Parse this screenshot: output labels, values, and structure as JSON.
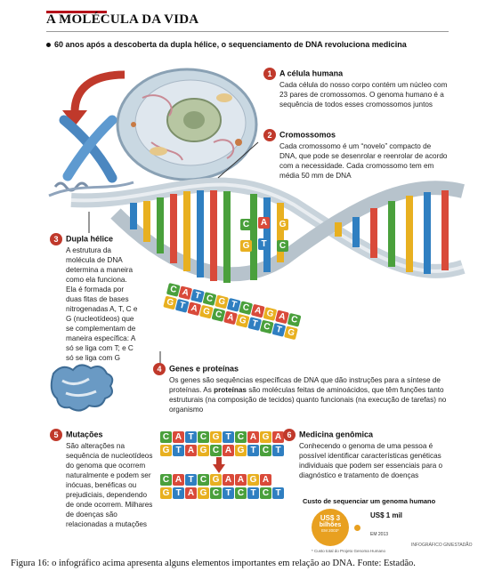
{
  "header": {
    "title": "A MOLÉCULA DA VIDA",
    "subtitle": "60 anos após a descoberta da dupla hélice, o sequenciamento de DNA revoluciona medicina"
  },
  "sections": [
    {
      "num": "1",
      "title": "A célula humana",
      "text": "Cada célula do nosso corpo contém um núcleo com 23 pares de cromossomos. O genoma humano é a sequência de todos esses cromossomos juntos"
    },
    {
      "num": "2",
      "title": "Cromossomos",
      "text": "Cada cromossomo é um “novelo” compacto de DNA, que pode se desenrolar e reenrolar de acordo com a necessidade. Cada cromossomo tem em média 50 mm de DNA"
    },
    {
      "num": "3",
      "title": "Dupla hélice",
      "text": "A estrutura da molécula de DNA determina a maneira como ela funciona. Ela é formada por duas fitas de bases nitrogenadas A, T, C e G (nucleotídeos) que se complementam de maneira específica: A só se liga com T; e C só se liga com G"
    },
    {
      "num": "4",
      "title": "Genes e proteínas",
      "text_a": "Os genes são sequências específicas de DNA que dão instruções para a síntese de proteínas. As ",
      "text_bold": "proteínas",
      "text_b": " são moléculas feitas de aminoácidos, que têm funções tanto estruturais (na composição de tecidos) quanto funcionais (na execução de tarefas) no organismo"
    },
    {
      "num": "5",
      "title": "Mutações",
      "text": "São alterações na sequência de nucleotídeos do genoma que ocorrem naturalmente e podem ser inócuas, benéficas ou prejudiciais, dependendo de onde ocorrem. Milhares de doenças são relacionadas a mutações"
    },
    {
      "num": "6",
      "title": "Medicina genômica",
      "text": "Conhecendo o genoma de uma pessoa é possível identificar características genéticas individuais que podem ser essenciais para o diagnóstico e tratamento de doenças"
    }
  ],
  "helix_bases": {
    "top": [
      "C",
      "A",
      "G"
    ],
    "bottom": [
      "G",
      "T",
      "C"
    ]
  },
  "strand": {
    "top": "CATCGTCAGAC",
    "bottom": "GTAGCAGTCTG"
  },
  "mutation": {
    "row1": "CATCGTCAGA",
    "row2": "GTAGCAGTCT",
    "row3": "CATCGAAGA",
    "row4": "GTAGCTCTCT"
  },
  "cost": {
    "title": "Custo de sequenciar um genoma humano",
    "coin1_value": "US$ 3",
    "coin1_unit": "bilhões",
    "coin1_year": "EM 2003*",
    "coin2_value": "US$ 1 mil",
    "coin2_year": "EM 2013",
    "footnote": "* Custo total do Projeto Genoma Humano"
  },
  "credit": "INFOGRÁFICO GN/ESTADÃO",
  "caption": "Figura 16: o infográfico acima apresenta alguns elementos importantes em relação ao DNA. Fonte: Estadão.",
  "colors": {
    "A": "#d94a3a",
    "T": "#2f7fc1",
    "C": "#4aa03c",
    "G": "#e8b020",
    "accent": "#c0392b"
  }
}
